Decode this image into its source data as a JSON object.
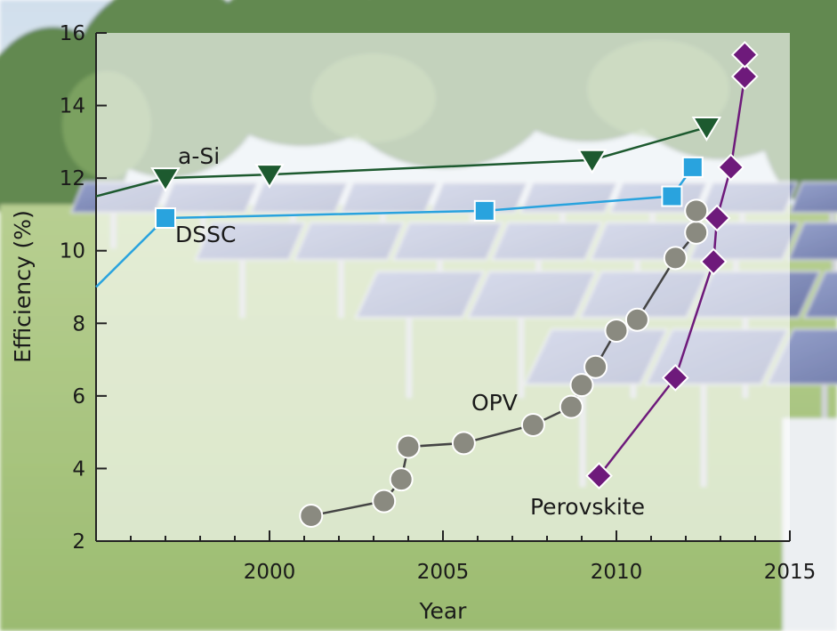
{
  "chart_data": {
    "type": "line",
    "xlabel": "Year",
    "ylabel": "Efficiency (%)",
    "xlim": [
      1995,
      2015
    ],
    "ylim": [
      2,
      16
    ],
    "xticks": [
      2000,
      2005,
      2010,
      2015
    ],
    "yticks": [
      2,
      4,
      6,
      8,
      10,
      12,
      14,
      16
    ],
    "grid": false,
    "background": "photo of solar panel array in a grassy field",
    "series": [
      {
        "name": "a-Si",
        "color": "#1d5a2f",
        "marker": "triangle-down",
        "points": [
          {
            "x": 1995,
            "y": 11.5
          },
          {
            "x": 1997.0,
            "y": 12.0
          },
          {
            "x": 2000.0,
            "y": 12.1
          },
          {
            "x": 2009.3,
            "y": 12.5
          },
          {
            "x": 2012.6,
            "y": 13.4
          }
        ]
      },
      {
        "name": "DSSC",
        "color": "#29a3de",
        "marker": "square",
        "points": [
          {
            "x": 1995,
            "y": 9.0
          },
          {
            "x": 1997.0,
            "y": 10.9
          },
          {
            "x": 2006.2,
            "y": 11.1
          },
          {
            "x": 2011.6,
            "y": 11.5
          },
          {
            "x": 2012.2,
            "y": 12.3
          }
        ]
      },
      {
        "name": "OPV",
        "color": "#8a8a80",
        "marker": "circle",
        "points": [
          {
            "x": 2001.2,
            "y": 2.7
          },
          {
            "x": 2003.3,
            "y": 3.1
          },
          {
            "x": 2003.8,
            "y": 3.7
          },
          {
            "x": 2004.0,
            "y": 4.6
          },
          {
            "x": 2005.6,
            "y": 4.7
          },
          {
            "x": 2007.6,
            "y": 5.2
          },
          {
            "x": 2008.7,
            "y": 5.7
          },
          {
            "x": 2009.0,
            "y": 6.3
          },
          {
            "x": 2009.4,
            "y": 6.8
          },
          {
            "x": 2010.0,
            "y": 7.8
          },
          {
            "x": 2010.6,
            "y": 8.1
          },
          {
            "x": 2011.7,
            "y": 9.8
          },
          {
            "x": 2012.3,
            "y": 10.5
          },
          {
            "x": 2012.3,
            "y": 11.1
          }
        ]
      },
      {
        "name": "Perovskite",
        "color": "#6e1a7b",
        "marker": "diamond",
        "points": [
          {
            "x": 2009.5,
            "y": 3.8
          },
          {
            "x": 2011.7,
            "y": 6.5
          },
          {
            "x": 2012.8,
            "y": 9.7
          },
          {
            "x": 2012.9,
            "y": 10.9
          },
          {
            "x": 2013.3,
            "y": 12.3
          },
          {
            "x": 2013.7,
            "y": 14.8
          },
          {
            "x": 2013.7,
            "y": 15.4
          }
        ]
      }
    ]
  }
}
